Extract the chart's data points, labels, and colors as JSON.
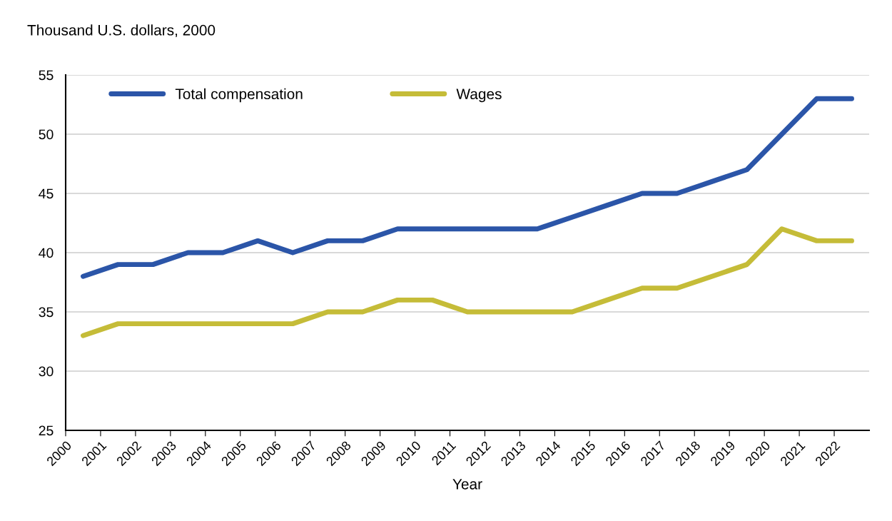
{
  "chart_data": {
    "type": "line",
    "ylabel": "Thousand U.S. dollars, 2000",
    "xlabel": "Year",
    "x": [
      2000.5,
      2001.5,
      2002.5,
      2003.5,
      2004.5,
      2005.5,
      2006.5,
      2007.5,
      2008.5,
      2009.5,
      2010.5,
      2011.5,
      2012.5,
      2013.5,
      2014.5,
      2015.5,
      2016.5,
      2017.5,
      2018.5,
      2019.5,
      2020.5,
      2021.5,
      2022.5
    ],
    "series": [
      {
        "name": "Total compensation",
        "color": "#2b55a8",
        "values": [
          38,
          39,
          39,
          40,
          40,
          41,
          40,
          41,
          41,
          42,
          42,
          42,
          42,
          42,
          43,
          44,
          45,
          45,
          46,
          47,
          50,
          53,
          53
        ]
      },
      {
        "name": "Wages",
        "color": "#c5bc38",
        "values": [
          33,
          34,
          34,
          34,
          34,
          34,
          34,
          35,
          35,
          36,
          36,
          35,
          35,
          35,
          35,
          36,
          37,
          37,
          38,
          39,
          42,
          41,
          41
        ]
      }
    ],
    "xlim": [
      2000,
      2023
    ],
    "xticks": [
      2000,
      2001,
      2002,
      2003,
      2004,
      2005,
      2006,
      2007,
      2008,
      2009,
      2010,
      2011,
      2012,
      2013,
      2014,
      2015,
      2016,
      2017,
      2018,
      2019,
      2020,
      2021,
      2022
    ],
    "ylim": [
      25,
      55
    ],
    "yticks": [
      25,
      30,
      35,
      40,
      45,
      50,
      55
    ],
    "grid": "y",
    "legend": "top left",
    "marker": "none",
    "line_style": "solid"
  }
}
